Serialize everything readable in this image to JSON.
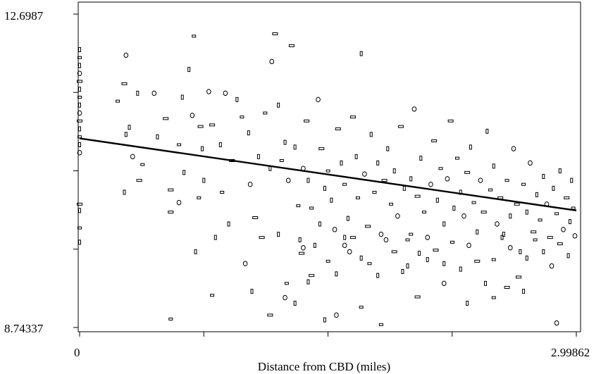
{
  "chart_data": {
    "type": "scatter",
    "title": "",
    "xlabel": "Distance from CBD (miles)",
    "ylabel": "",
    "xlim": [
      0,
      2.99862
    ],
    "ylim": [
      8.74337,
      12.6987
    ],
    "x_tick_labels": [
      "0",
      "2.99862"
    ],
    "y_tick_labels": [
      "12.6987",
      "8.74337"
    ],
    "x_ticks": [
      0,
      0.74966,
      1.49931,
      2.24897,
      2.99862
    ],
    "y_ticks": [
      8.74337,
      9.7322,
      10.72104,
      11.70987,
      12.6987
    ],
    "grid": false,
    "legend": "none",
    "fit_line": {
      "x": [
        0,
        2.99862
      ],
      "y": [
        11.13,
        10.22
      ]
    },
    "marker_note": "small open rectangles and circles",
    "points": [
      [
        0.0,
        12.25
      ],
      [
        0.0,
        12.15
      ],
      [
        0.0,
        12.05
      ],
      [
        0.0,
        11.95
      ],
      [
        0.0,
        11.85
      ],
      [
        0.0,
        11.75
      ],
      [
        0.0,
        11.65
      ],
      [
        0.0,
        11.55
      ],
      [
        0.0,
        11.45
      ],
      [
        0.0,
        11.35
      ],
      [
        0.0,
        11.25
      ],
      [
        0.0,
        11.15
      ],
      [
        0.0,
        11.05
      ],
      [
        0.0,
        10.95
      ],
      [
        0.0,
        10.3
      ],
      [
        0.0,
        10.22
      ],
      [
        0.0,
        10.0
      ],
      [
        0.0,
        9.82
      ],
      [
        0.28,
        12.18
      ],
      [
        0.27,
        11.82
      ],
      [
        0.28,
        11.18
      ],
      [
        0.23,
        11.6
      ],
      [
        0.3,
        11.27
      ],
      [
        0.32,
        10.9
      ],
      [
        0.36,
        10.6
      ],
      [
        0.35,
        11.7
      ],
      [
        0.38,
        10.8
      ],
      [
        0.27,
        10.45
      ],
      [
        0.45,
        11.7
      ],
      [
        0.52,
        11.38
      ],
      [
        0.47,
        11.15
      ],
      [
        0.6,
        11.05
      ],
      [
        0.63,
        10.7
      ],
      [
        0.6,
        10.32
      ],
      [
        0.55,
        10.48
      ],
      [
        0.62,
        11.65
      ],
      [
        0.69,
        12.42
      ],
      [
        0.66,
        12.0
      ],
      [
        0.68,
        11.42
      ],
      [
        0.73,
        11.28
      ],
      [
        0.75,
        10.6
      ],
      [
        0.72,
        10.38
      ],
      [
        0.74,
        11.0
      ],
      [
        0.78,
        11.72
      ],
      [
        0.8,
        11.3
      ],
      [
        0.85,
        11.05
      ],
      [
        0.86,
        10.45
      ],
      [
        0.82,
        9.88
      ],
      [
        0.88,
        11.7
      ],
      [
        0.92,
        10.85
      ],
      [
        0.95,
        11.62
      ],
      [
        0.98,
        11.4
      ],
      [
        1.02,
        11.2
      ],
      [
        1.03,
        10.55
      ],
      [
        1.06,
        10.13
      ],
      [
        1.08,
        10.9
      ],
      [
        1.12,
        11.45
      ],
      [
        1.15,
        10.75
      ],
      [
        1.16,
        12.1
      ],
      [
        1.18,
        12.45
      ],
      [
        1.2,
        11.55
      ],
      [
        1.22,
        10.85
      ],
      [
        1.24,
        11.08
      ],
      [
        1.26,
        10.6
      ],
      [
        1.28,
        12.3
      ],
      [
        1.3,
        11.02
      ],
      [
        1.32,
        10.28
      ],
      [
        1.33,
        9.85
      ],
      [
        1.35,
        10.75
      ],
      [
        1.37,
        11.35
      ],
      [
        1.38,
        10.6
      ],
      [
        1.4,
        10.25
      ],
      [
        1.42,
        9.78
      ],
      [
        1.44,
        11.62
      ],
      [
        1.46,
        11.0
      ],
      [
        1.48,
        10.5
      ],
      [
        1.5,
        10.72
      ],
      [
        1.52,
        10.35
      ],
      [
        1.54,
        9.98
      ],
      [
        1.56,
        11.25
      ],
      [
        1.58,
        10.82
      ],
      [
        1.6,
        10.55
      ],
      [
        1.62,
        10.12
      ],
      [
        1.63,
        9.7
      ],
      [
        1.65,
        11.4
      ],
      [
        1.67,
        10.9
      ],
      [
        1.68,
        10.38
      ],
      [
        1.7,
        12.2
      ],
      [
        1.72,
        10.68
      ],
      [
        1.74,
        10.02
      ],
      [
        1.76,
        11.18
      ],
      [
        1.78,
        10.45
      ],
      [
        1.8,
        10.82
      ],
      [
        1.82,
        9.92
      ],
      [
        1.84,
        10.6
      ],
      [
        1.86,
        11.0
      ],
      [
        1.88,
        10.3
      ],
      [
        1.9,
        10.72
      ],
      [
        1.92,
        10.15
      ],
      [
        1.94,
        11.28
      ],
      [
        1.96,
        10.5
      ],
      [
        1.98,
        9.85
      ],
      [
        2.0,
        10.62
      ],
      [
        2.02,
        11.5
      ],
      [
        2.04,
        10.4
      ],
      [
        2.06,
        10.88
      ],
      [
        2.08,
        10.2
      ],
      [
        2.1,
        9.6
      ],
      [
        2.12,
        10.55
      ],
      [
        2.14,
        11.1
      ],
      [
        2.16,
        10.35
      ],
      [
        2.18,
        10.75
      ],
      [
        2.2,
        10.05
      ],
      [
        2.22,
        10.62
      ],
      [
        2.24,
        11.35
      ],
      [
        2.26,
        10.25
      ],
      [
        2.28,
        10.88
      ],
      [
        2.3,
        10.45
      ],
      [
        2.32,
        10.15
      ],
      [
        2.34,
        10.7
      ],
      [
        2.36,
        11.02
      ],
      [
        2.38,
        10.32
      ],
      [
        2.4,
        9.95
      ],
      [
        2.42,
        10.6
      ],
      [
        2.44,
        10.2
      ],
      [
        2.46,
        11.22
      ],
      [
        2.48,
        10.48
      ],
      [
        2.5,
        10.78
      ],
      [
        2.52,
        10.05
      ],
      [
        2.54,
        10.38
      ],
      [
        2.56,
        9.92
      ],
      [
        2.58,
        10.6
      ],
      [
        2.6,
        10.15
      ],
      [
        2.62,
        11.0
      ],
      [
        2.64,
        10.3
      ],
      [
        2.66,
        9.7
      ],
      [
        2.68,
        10.55
      ],
      [
        2.7,
        10.2
      ],
      [
        2.72,
        10.82
      ],
      [
        2.74,
        9.95
      ],
      [
        2.76,
        10.42
      ],
      [
        2.78,
        10.1
      ],
      [
        2.8,
        10.65
      ],
      [
        2.82,
        10.3
      ],
      [
        2.84,
        9.88
      ],
      [
        2.86,
        10.5
      ],
      [
        2.88,
        10.18
      ],
      [
        2.9,
        10.72
      ],
      [
        2.92,
        9.98
      ],
      [
        2.94,
        10.38
      ],
      [
        2.96,
        10.08
      ],
      [
        2.98,
        10.25
      ],
      [
        2.97,
        10.6
      ],
      [
        2.99,
        9.9
      ],
      [
        0.55,
        10.2
      ],
      [
        0.7,
        9.7
      ],
      [
        0.8,
        9.15
      ],
      [
        0.9,
        10.05
      ],
      [
        1.0,
        9.55
      ],
      [
        1.1,
        9.88
      ],
      [
        1.2,
        9.92
      ],
      [
        1.25,
        9.3
      ],
      [
        1.3,
        9.05
      ],
      [
        1.35,
        9.75
      ],
      [
        1.4,
        9.4
      ],
      [
        1.45,
        10.05
      ],
      [
        1.5,
        9.58
      ],
      [
        1.55,
        9.42
      ],
      [
        1.6,
        9.78
      ],
      [
        1.65,
        9.88
      ],
      [
        1.7,
        9.62
      ],
      [
        1.75,
        9.55
      ],
      [
        1.8,
        9.4
      ],
      [
        1.85,
        9.85
      ],
      [
        1.9,
        9.7
      ],
      [
        1.95,
        9.45
      ],
      [
        2.0,
        9.92
      ],
      [
        2.05,
        9.68
      ],
      [
        2.1,
        9.88
      ],
      [
        2.15,
        9.72
      ],
      [
        2.2,
        9.55
      ],
      [
        2.25,
        9.82
      ],
      [
        2.3,
        9.48
      ],
      [
        2.35,
        9.78
      ],
      [
        2.4,
        9.58
      ],
      [
        2.45,
        9.3
      ],
      [
        2.5,
        9.6
      ],
      [
        2.55,
        9.88
      ],
      [
        2.6,
        9.75
      ],
      [
        2.65,
        9.38
      ],
      [
        2.7,
        9.62
      ],
      [
        2.75,
        9.85
      ],
      [
        2.8,
        9.7
      ],
      [
        2.85,
        9.52
      ],
      [
        2.9,
        9.8
      ],
      [
        2.95,
        9.65
      ],
      [
        0.55,
        8.85
      ],
      [
        1.04,
        9.2
      ],
      [
        1.24,
        9.12
      ],
      [
        1.34,
        9.68
      ],
      [
        1.6,
        9.88
      ],
      [
        1.7,
        9.0
      ],
      [
        1.98,
        9.52
      ],
      [
        1.55,
        8.9
      ],
      [
        2.04,
        9.13
      ],
      [
        2.34,
        9.05
      ],
      [
        2.5,
        9.12
      ],
      [
        2.68,
        9.2
      ],
      [
        2.88,
        8.8
      ],
      [
        1.15,
        8.9
      ],
      [
        1.48,
        8.84
      ],
      [
        1.82,
        8.78
      ],
      [
        1.38,
        9.32
      ],
      [
        2.2,
        9.3
      ],
      [
        2.58,
        9.25
      ]
    ]
  }
}
